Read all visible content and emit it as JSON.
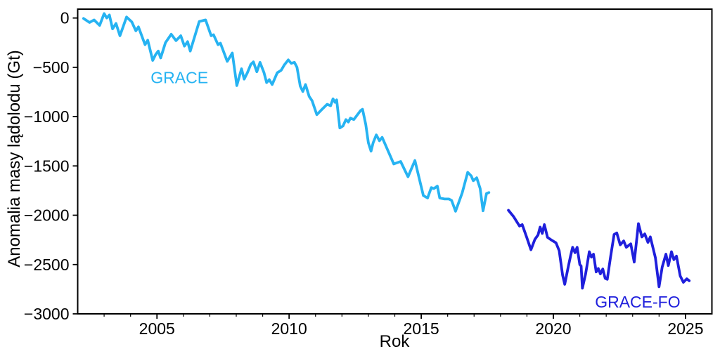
{
  "figure": {
    "background": "#ffffff",
    "axis_color": "#000000"
  },
  "axes": {
    "xlabel": "Rok",
    "ylabel": "Anomalia masy lądolodu (Gt)",
    "y_tick_labels": [
      "0",
      "−500",
      "−1000",
      "−1500",
      "−2000",
      "−2500",
      "−3000"
    ],
    "x_tick_labels": [
      "2005",
      "2010",
      "2015",
      "2020",
      "2025"
    ]
  },
  "chart_data": {
    "type": "line",
    "title": "",
    "xlabel": "Rok",
    "ylabel": "Anomalia masy lądolodu (Gt)",
    "xlim": [
      2002,
      2026
    ],
    "ylim": [
      -3000,
      90
    ],
    "grid": false,
    "x_major_ticks": [
      2005,
      2010,
      2015,
      2020,
      2025
    ],
    "x_minor_tick_years": [
      2003,
      2004,
      2006,
      2007,
      2008,
      2009,
      2011,
      2012,
      2013,
      2014,
      2016,
      2017,
      2018,
      2019,
      2021,
      2022,
      2023,
      2024
    ],
    "y_ticks": [
      0,
      -500,
      -1000,
      -1500,
      -2000,
      -2500,
      -3000
    ],
    "legend_position": "inline-annotations",
    "annotations": [
      {
        "text": "GRACE",
        "year": 2005.85,
        "gt": -660,
        "color": "#26b3f2"
      },
      {
        "text": "GRACE-FO",
        "year": 2023.19,
        "gt": -2936,
        "color": "#1f1fdc"
      }
    ],
    "series": [
      {
        "name": "GRACE",
        "color": "#26b3f2",
        "points": [
          [
            2002.22,
            -5
          ],
          [
            2002.45,
            -45
          ],
          [
            2002.62,
            -20
          ],
          [
            2002.83,
            -75
          ],
          [
            2003.0,
            45
          ],
          [
            2003.1,
            0
          ],
          [
            2003.2,
            30
          ],
          [
            2003.32,
            -110
          ],
          [
            2003.45,
            -55
          ],
          [
            2003.6,
            -180
          ],
          [
            2003.85,
            10
          ],
          [
            2004.05,
            -40
          ],
          [
            2004.2,
            -130
          ],
          [
            2004.3,
            -90
          ],
          [
            2004.55,
            -270
          ],
          [
            2004.65,
            -225
          ],
          [
            2004.84,
            -430
          ],
          [
            2004.95,
            -370
          ],
          [
            2005.05,
            -335
          ],
          [
            2005.14,
            -405
          ],
          [
            2005.32,
            -250
          ],
          [
            2005.54,
            -165
          ],
          [
            2005.72,
            -230
          ],
          [
            2005.9,
            -180
          ],
          [
            2006.04,
            -285
          ],
          [
            2006.16,
            -240
          ],
          [
            2006.26,
            -335
          ],
          [
            2006.6,
            -35
          ],
          [
            2006.84,
            -20
          ],
          [
            2007.05,
            -180
          ],
          [
            2007.14,
            -170
          ],
          [
            2007.31,
            -270
          ],
          [
            2007.4,
            -255
          ],
          [
            2007.66,
            -440
          ],
          [
            2007.85,
            -355
          ],
          [
            2008.02,
            -685
          ],
          [
            2008.12,
            -590
          ],
          [
            2008.2,
            -515
          ],
          [
            2008.3,
            -620
          ],
          [
            2008.42,
            -555
          ],
          [
            2008.55,
            -470
          ],
          [
            2008.65,
            -445
          ],
          [
            2008.78,
            -545
          ],
          [
            2008.9,
            -450
          ],
          [
            2009.05,
            -555
          ],
          [
            2009.15,
            -655
          ],
          [
            2009.25,
            -625
          ],
          [
            2009.36,
            -675
          ],
          [
            2009.55,
            -555
          ],
          [
            2009.7,
            -530
          ],
          [
            2009.82,
            -475
          ],
          [
            2009.97,
            -425
          ],
          [
            2010.08,
            -460
          ],
          [
            2010.2,
            -450
          ],
          [
            2010.3,
            -500
          ],
          [
            2010.42,
            -690
          ],
          [
            2010.52,
            -745
          ],
          [
            2010.62,
            -675
          ],
          [
            2010.76,
            -795
          ],
          [
            2010.87,
            -840
          ],
          [
            2011.05,
            -980
          ],
          [
            2011.25,
            -925
          ],
          [
            2011.44,
            -875
          ],
          [
            2011.57,
            -890
          ],
          [
            2011.66,
            -820
          ],
          [
            2011.74,
            -855
          ],
          [
            2011.8,
            -830
          ],
          [
            2011.92,
            -1115
          ],
          [
            2012.04,
            -1095
          ],
          [
            2012.15,
            -1030
          ],
          [
            2012.24,
            -1055
          ],
          [
            2012.32,
            -1015
          ],
          [
            2012.45,
            -1030
          ],
          [
            2012.7,
            -940
          ],
          [
            2012.78,
            -925
          ],
          [
            2012.9,
            -1080
          ],
          [
            2013.0,
            -1265
          ],
          [
            2013.1,
            -1350
          ],
          [
            2013.18,
            -1265
          ],
          [
            2013.3,
            -1185
          ],
          [
            2013.42,
            -1245
          ],
          [
            2013.52,
            -1210
          ],
          [
            2013.96,
            -1480
          ],
          [
            2014.22,
            -1455
          ],
          [
            2014.5,
            -1610
          ],
          [
            2014.76,
            -1445
          ],
          [
            2015.08,
            -1800
          ],
          [
            2015.24,
            -1825
          ],
          [
            2015.38,
            -1720
          ],
          [
            2015.48,
            -1730
          ],
          [
            2015.61,
            -1705
          ],
          [
            2015.7,
            -1825
          ],
          [
            2015.88,
            -1835
          ],
          [
            2016.05,
            -1835
          ],
          [
            2016.15,
            -1850
          ],
          [
            2016.3,
            -1960
          ],
          [
            2016.55,
            -1775
          ],
          [
            2016.76,
            -1565
          ],
          [
            2016.89,
            -1600
          ],
          [
            2016.97,
            -1650
          ],
          [
            2017.1,
            -1620
          ],
          [
            2017.23,
            -1730
          ],
          [
            2017.34,
            -1955
          ],
          [
            2017.47,
            -1780
          ],
          [
            2017.56,
            -1770
          ]
        ]
      },
      {
        "name": "GRACE-FO",
        "color": "#1f1fdc",
        "points": [
          [
            2018.3,
            -1950
          ],
          [
            2018.5,
            -2015
          ],
          [
            2018.72,
            -2110
          ],
          [
            2018.82,
            -2095
          ],
          [
            2019.0,
            -2230
          ],
          [
            2019.15,
            -2350
          ],
          [
            2019.3,
            -2245
          ],
          [
            2019.42,
            -2200
          ],
          [
            2019.5,
            -2120
          ],
          [
            2019.58,
            -2185
          ],
          [
            2019.66,
            -2095
          ],
          [
            2019.78,
            -2225
          ],
          [
            2019.95,
            -2255
          ],
          [
            2020.1,
            -2280
          ],
          [
            2020.22,
            -2360
          ],
          [
            2020.35,
            -2610
          ],
          [
            2020.43,
            -2700
          ],
          [
            2020.55,
            -2540
          ],
          [
            2020.65,
            -2415
          ],
          [
            2020.73,
            -2325
          ],
          [
            2020.82,
            -2380
          ],
          [
            2020.9,
            -2325
          ],
          [
            2021.0,
            -2500
          ],
          [
            2021.05,
            -2515
          ],
          [
            2021.1,
            -2740
          ],
          [
            2021.22,
            -2595
          ],
          [
            2021.36,
            -2370
          ],
          [
            2021.44,
            -2425
          ],
          [
            2021.52,
            -2395
          ],
          [
            2021.62,
            -2575
          ],
          [
            2021.7,
            -2540
          ],
          [
            2021.78,
            -2595
          ],
          [
            2021.87,
            -2545
          ],
          [
            2021.96,
            -2640
          ],
          [
            2022.04,
            -2650
          ],
          [
            2022.16,
            -2430
          ],
          [
            2022.3,
            -2195
          ],
          [
            2022.4,
            -2180
          ],
          [
            2022.53,
            -2300
          ],
          [
            2022.66,
            -2260
          ],
          [
            2022.76,
            -2325
          ],
          [
            2022.93,
            -2290
          ],
          [
            2023.06,
            -2475
          ],
          [
            2023.22,
            -2085
          ],
          [
            2023.35,
            -2220
          ],
          [
            2023.46,
            -2190
          ],
          [
            2023.58,
            -2275
          ],
          [
            2023.67,
            -2220
          ],
          [
            2023.86,
            -2430
          ],
          [
            2024.0,
            -2725
          ],
          [
            2024.12,
            -2525
          ],
          [
            2024.26,
            -2395
          ],
          [
            2024.35,
            -2510
          ],
          [
            2024.47,
            -2370
          ],
          [
            2024.56,
            -2450
          ],
          [
            2024.66,
            -2415
          ],
          [
            2024.8,
            -2615
          ],
          [
            2024.92,
            -2680
          ],
          [
            2025.05,
            -2645
          ],
          [
            2025.14,
            -2665
          ]
        ]
      }
    ]
  }
}
